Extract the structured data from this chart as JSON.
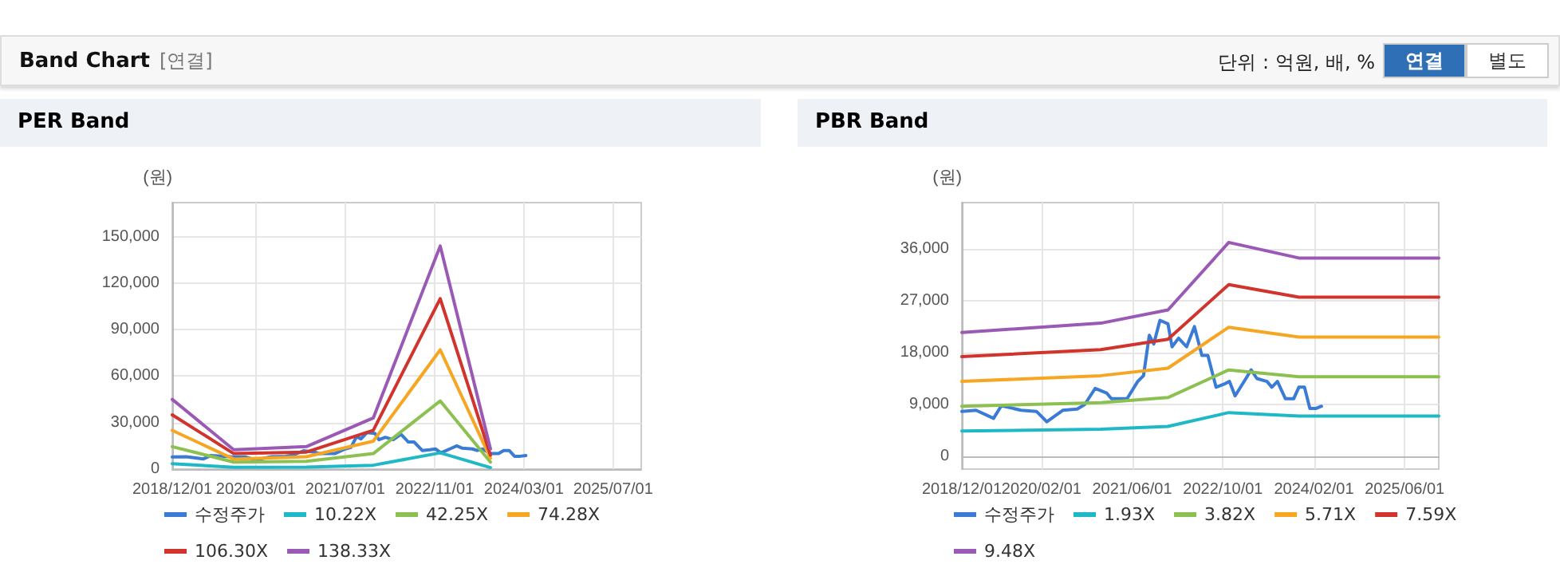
{
  "chart_data": [
    {
      "type": "line",
      "title": "PER Band",
      "ylabel": "(원)",
      "annotations": [
        "Band Chart",
        "[연결]",
        "단위 : 억원, 배, %",
        "연결",
        "별도"
      ],
      "xlim": [
        "2018-12-01",
        "2025-12-01"
      ],
      "xticks": [
        {
          "value": "2018-12-01",
          "label": "2018/12/01"
        },
        {
          "value": "2020-03-01",
          "label": "2020/03/01"
        },
        {
          "value": "2021-07-01",
          "label": "2021/07/01"
        },
        {
          "value": "2022-11-01",
          "label": "2022/11/01"
        },
        {
          "value": "2024-03-01",
          "label": "2024/03/01"
        },
        {
          "value": "2025-07-01",
          "label": "2025/07/01"
        }
      ],
      "ylim": [
        0,
        172000
      ],
      "yticks": [
        {
          "value": 0,
          "label": "0"
        },
        {
          "value": 30000,
          "label": "30,000"
        },
        {
          "value": 60000,
          "label": "60,000"
        },
        {
          "value": 90000,
          "label": "90,000"
        },
        {
          "value": 120000,
          "label": "120,000"
        },
        {
          "value": 150000,
          "label": "150,000"
        }
      ],
      "grid": true,
      "legend": "bottom",
      "marker": "none",
      "line_style": "solid",
      "series": [
        {
          "name": "수정주가",
          "color": "#3a7bd5",
          "x": [
            "2018-12-01",
            "2019-02-15",
            "2019-05-20",
            "2019-07-01",
            "2019-10-15",
            "2020-01-05",
            "2020-03-01",
            "2020-05-25",
            "2020-08-10",
            "2020-09-20",
            "2020-11-15",
            "2021-01-15",
            "2021-02-10",
            "2021-05-05",
            "2021-07-01",
            "2021-08-01",
            "2021-09-01",
            "2021-09-25",
            "2021-10-28",
            "2021-12-10",
            "2022-01-01",
            "2022-02-05",
            "2022-03-20",
            "2022-05-01",
            "2022-06-10",
            "2022-07-12",
            "2022-08-25",
            "2022-10-05",
            "2022-11-05",
            "2022-12-05",
            "2023-02-01",
            "2023-03-01",
            "2023-04-01",
            "2023-05-25",
            "2023-06-20",
            "2023-07-20",
            "2023-09-01",
            "2023-10-15",
            "2023-11-12",
            "2023-12-12",
            "2024-01-10",
            "2024-02-10",
            "2024-03-12"
          ],
          "values": [
            7800,
            8000,
            6600,
            8800,
            8000,
            7800,
            6000,
            8000,
            8200,
            9000,
            11800,
            11000,
            10000,
            10000,
            13000,
            14000,
            21000,
            19500,
            23600,
            23000,
            19000,
            20500,
            19000,
            22500,
            17500,
            17500,
            12000,
            12500,
            13000,
            10500,
            13500,
            15000,
            13500,
            13000,
            12000,
            13000,
            10000,
            10000,
            12000,
            12000,
            8300,
            8300,
            8700
          ]
        },
        {
          "name": "10.22X",
          "color": "#1fb8c7",
          "x": [
            "2018-12-01",
            "2019-11-01",
            "2020-12-01",
            "2021-12-01",
            "2022-12-01",
            "2023-09-01"
          ],
          "values": [
            3500,
            1200,
            1300,
            2500,
            10500,
            1000
          ]
        },
        {
          "name": "42.25X",
          "color": "#8cc152",
          "x": [
            "2018-12-01",
            "2019-11-01",
            "2020-12-01",
            "2021-12-01",
            "2022-12-01",
            "2023-09-01"
          ],
          "values": [
            14500,
            4500,
            5000,
            10000,
            44000,
            4500
          ]
        },
        {
          "name": "74.28X",
          "color": "#f5a623",
          "x": [
            "2018-12-01",
            "2019-11-01",
            "2020-12-01",
            "2021-12-01",
            "2022-12-01",
            "2023-09-01"
          ],
          "values": [
            25000,
            6500,
            8000,
            18000,
            77000,
            7000
          ]
        },
        {
          "name": "106.30X",
          "color": "#d0342c",
          "x": [
            "2018-12-01",
            "2019-11-01",
            "2020-12-01",
            "2021-12-01",
            "2022-12-01",
            "2023-09-01"
          ],
          "values": [
            35000,
            10000,
            11000,
            25000,
            110000,
            9000
          ]
        },
        {
          "name": "138.33X",
          "color": "#9b59b6",
          "x": [
            "2018-12-01",
            "2019-11-01",
            "2020-12-01",
            "2021-12-01",
            "2022-12-01",
            "2023-09-01"
          ],
          "values": [
            45000,
            12500,
            14500,
            33000,
            144000,
            13000
          ]
        }
      ]
    },
    {
      "type": "line",
      "title": "PBR Band",
      "ylabel": "(원)",
      "xlim": [
        "2018-12-01",
        "2025-12-01"
      ],
      "xticks": [
        {
          "value": "2018-12-01",
          "label": "2018/12/01"
        },
        {
          "value": "2020-02-01",
          "label": "2020/02/01"
        },
        {
          "value": "2021-06-01",
          "label": "2021/06/01"
        },
        {
          "value": "2022-10-01",
          "label": "2022/10/01"
        },
        {
          "value": "2024-02-01",
          "label": "2024/02/01"
        },
        {
          "value": "2025-06-01",
          "label": "2025/06/01"
        }
      ],
      "ylim": [
        -2200,
        44000
      ],
      "yticks": [
        {
          "value": 0,
          "label": "0"
        },
        {
          "value": 9000,
          "label": "9,000"
        },
        {
          "value": 18000,
          "label": "18,000"
        },
        {
          "value": 27000,
          "label": "27,000"
        },
        {
          "value": 36000,
          "label": "36,000"
        }
      ],
      "grid": true,
      "legend": "bottom",
      "marker": "none",
      "line_style": "solid",
      "series": [
        {
          "name": "수정주가",
          "color": "#3a7bd5",
          "x": [
            "2018-12-01",
            "2019-02-15",
            "2019-05-20",
            "2019-07-01",
            "2019-10-15",
            "2020-01-05",
            "2020-03-01",
            "2020-05-25",
            "2020-08-10",
            "2020-09-20",
            "2020-11-15",
            "2021-01-15",
            "2021-02-10",
            "2021-05-05",
            "2021-07-01",
            "2021-08-01",
            "2021-09-01",
            "2021-09-25",
            "2021-10-28",
            "2021-12-10",
            "2022-01-01",
            "2022-02-05",
            "2022-03-20",
            "2022-05-01",
            "2022-06-10",
            "2022-07-12",
            "2022-08-25",
            "2022-10-05",
            "2022-11-05",
            "2022-12-05",
            "2023-02-01",
            "2023-03-01",
            "2023-04-01",
            "2023-05-25",
            "2023-06-20",
            "2023-07-20",
            "2023-09-01",
            "2023-10-15",
            "2023-11-12",
            "2023-12-12",
            "2024-01-10",
            "2024-02-10",
            "2024-03-12"
          ],
          "values": [
            7800,
            8000,
            6600,
            8800,
            8000,
            7800,
            6000,
            8000,
            8200,
            9000,
            11800,
            11000,
            10000,
            10000,
            13000,
            14000,
            21000,
            19500,
            23600,
            23000,
            19000,
            20500,
            19000,
            22500,
            17500,
            17500,
            12000,
            12500,
            13000,
            10500,
            13500,
            15000,
            13500,
            13000,
            12000,
            13000,
            10000,
            10000,
            12000,
            12000,
            8300,
            8300,
            8700
          ]
        },
        {
          "name": "1.93X",
          "color": "#1fb8c7",
          "x": [
            "2018-12-01",
            "2020-12-15",
            "2021-12-10",
            "2022-11-01",
            "2023-11-12",
            "2025-12-01"
          ],
          "values": [
            4400,
            4700,
            5200,
            7600,
            7000,
            7000
          ]
        },
        {
          "name": "3.82X",
          "color": "#8cc152",
          "x": [
            "2018-12-01",
            "2020-12-15",
            "2021-12-10",
            "2022-11-01",
            "2023-11-12",
            "2025-12-01"
          ],
          "values": [
            8700,
            9300,
            10200,
            15000,
            13800,
            13800
          ]
        },
        {
          "name": "5.71X",
          "color": "#f5a623",
          "x": [
            "2018-12-01",
            "2020-12-15",
            "2021-12-10",
            "2022-11-01",
            "2023-11-12",
            "2025-12-01"
          ],
          "values": [
            13000,
            14000,
            15300,
            22400,
            20700,
            20700
          ]
        },
        {
          "name": "7.59X",
          "color": "#d0342c",
          "x": [
            "2018-12-01",
            "2020-12-15",
            "2021-12-10",
            "2022-11-01",
            "2023-11-12",
            "2025-12-01"
          ],
          "values": [
            17300,
            18500,
            20300,
            29800,
            27600,
            27600
          ]
        },
        {
          "name": "9.48X",
          "color": "#9b59b6",
          "x": [
            "2018-12-01",
            "2020-12-15",
            "2021-12-10",
            "2022-11-01",
            "2023-11-12",
            "2025-12-01"
          ],
          "values": [
            21500,
            23100,
            25400,
            37100,
            34400,
            34400
          ]
        }
      ]
    }
  ]
}
